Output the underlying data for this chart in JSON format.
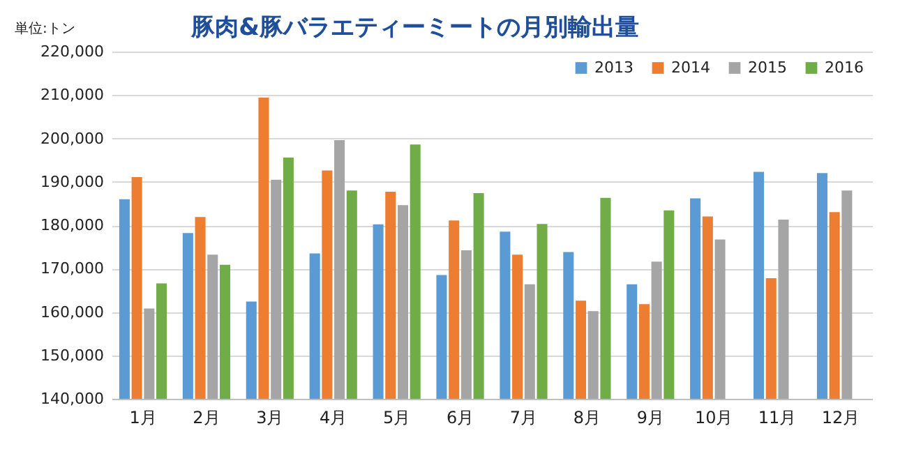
{
  "chart_data": {
    "type": "bar",
    "title": "豚肉&豚バラエティーミートの月別輸出量",
    "ylabel": "単位:トン",
    "categories": [
      "1月",
      "2月",
      "3月",
      "4月",
      "5月",
      "6月",
      "7月",
      "8月",
      "9月",
      "10月",
      "11月",
      "12月"
    ],
    "series": [
      {
        "name": "2013",
        "color": "#5b9bd5",
        "values": [
          186000,
          178200,
          162400,
          173500,
          180200,
          168500,
          178500,
          173800,
          166400,
          186200,
          192300,
          192000
        ]
      },
      {
        "name": "2014",
        "color": "#ed7d31",
        "values": [
          191100,
          181900,
          209400,
          192600,
          187700,
          181100,
          173200,
          162600,
          161800,
          182000,
          167800,
          183000
        ]
      },
      {
        "name": "2015",
        "color": "#a5a5a5",
        "values": [
          160800,
          173200,
          190500,
          199600,
          184600,
          174200,
          166400,
          160200,
          171600,
          176700,
          181300,
          188000
        ]
      },
      {
        "name": "2016",
        "color": "#70ad47",
        "values": [
          166600,
          170900,
          195600,
          188000,
          198600,
          187400,
          180300,
          186300,
          183400,
          null,
          null,
          null
        ]
      }
    ],
    "ylim": [
      140000,
      220000
    ],
    "yticks": [
      {
        "value": 140000,
        "label": "140,000"
      },
      {
        "value": 150000,
        "label": "150,000"
      },
      {
        "value": 160000,
        "label": "160,000"
      },
      {
        "value": 170000,
        "label": "170,000"
      },
      {
        "value": 180000,
        "label": "180,000"
      },
      {
        "value": 190000,
        "label": "190,000"
      },
      {
        "value": 200000,
        "label": "200,000"
      },
      {
        "value": 210000,
        "label": "210,000"
      },
      {
        "value": 220000,
        "label": "220,000"
      }
    ],
    "grid": "y",
    "legend": "top right"
  }
}
